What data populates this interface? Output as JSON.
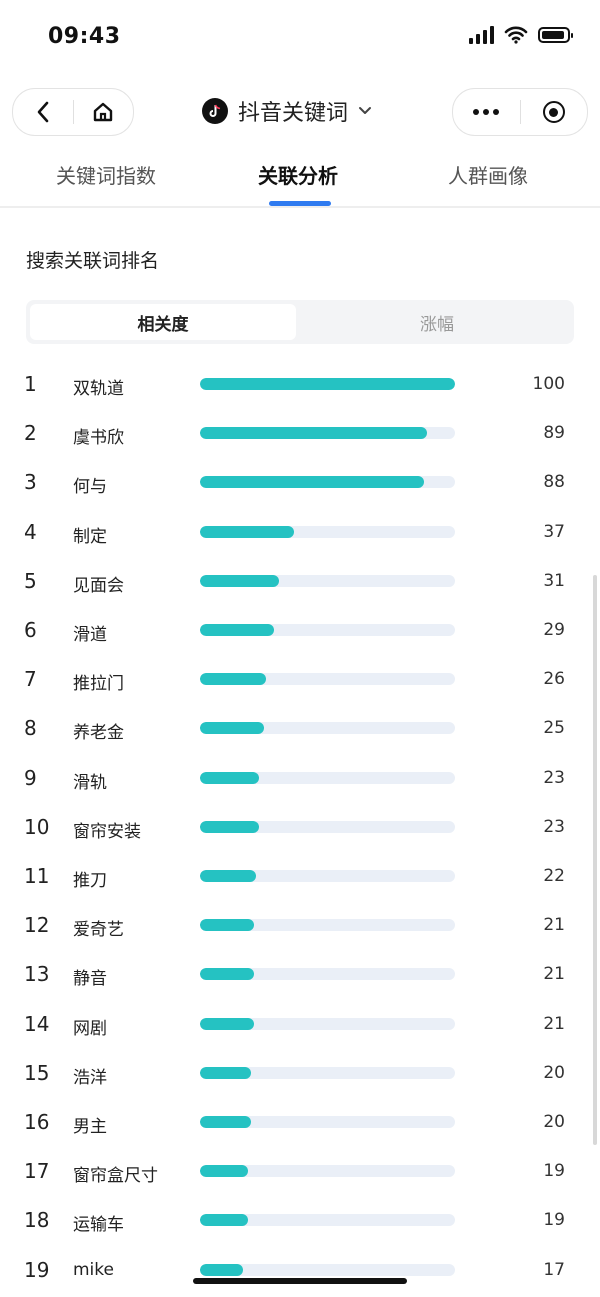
{
  "status_bar": {
    "time": "09:43"
  },
  "nav": {
    "title": "抖音关键词"
  },
  "tabs": [
    {
      "label": "关键词指数",
      "active": false
    },
    {
      "label": "关联分析",
      "active": true
    },
    {
      "label": "人群画像",
      "active": false
    }
  ],
  "section": {
    "title": "搜索关联词排名"
  },
  "segmented": {
    "options": [
      "相关度",
      "涨幅"
    ],
    "selected": "相关度"
  },
  "colors": {
    "bar_fill": "#25c2c2",
    "bar_track": "#eaeff7",
    "tab_indicator": "#2f7bf0"
  },
  "ranking": [
    {
      "rank": "1",
      "keyword": "双轨道",
      "score": 100
    },
    {
      "rank": "2",
      "keyword": "虞书欣",
      "score": 89
    },
    {
      "rank": "3",
      "keyword": "何与",
      "score": 88
    },
    {
      "rank": "4",
      "keyword": "制定",
      "score": 37
    },
    {
      "rank": "5",
      "keyword": "见面会",
      "score": 31
    },
    {
      "rank": "6",
      "keyword": "滑道",
      "score": 29
    },
    {
      "rank": "7",
      "keyword": "推拉门",
      "score": 26
    },
    {
      "rank": "8",
      "keyword": "养老金",
      "score": 25
    },
    {
      "rank": "9",
      "keyword": "滑轨",
      "score": 23
    },
    {
      "rank": "10",
      "keyword": "窗帘安装",
      "score": 23
    },
    {
      "rank": "11",
      "keyword": "推刀",
      "score": 22
    },
    {
      "rank": "12",
      "keyword": "爱奇艺",
      "score": 21
    },
    {
      "rank": "13",
      "keyword": "静音",
      "score": 21
    },
    {
      "rank": "14",
      "keyword": "网剧",
      "score": 21
    },
    {
      "rank": "15",
      "keyword": "浩洋",
      "score": 20
    },
    {
      "rank": "16",
      "keyword": "男主",
      "score": 20
    },
    {
      "rank": "17",
      "keyword": "窗帘盒尺寸",
      "score": 19
    },
    {
      "rank": "18",
      "keyword": "运输车",
      "score": 19
    },
    {
      "rank": "19",
      "keyword": "mike",
      "score": 17
    }
  ]
}
